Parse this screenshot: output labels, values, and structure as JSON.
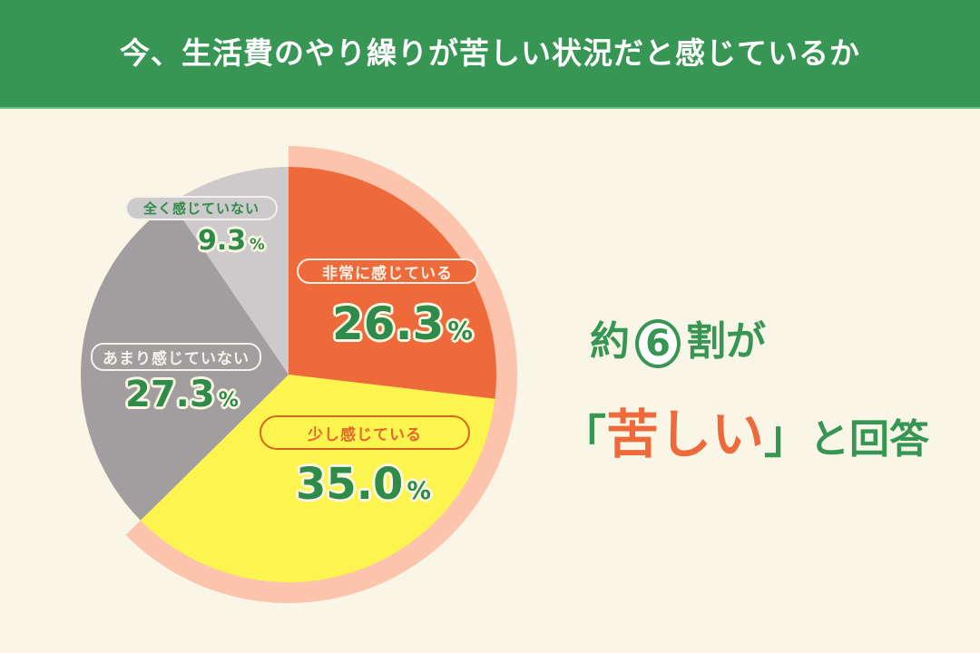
{
  "header": {
    "title": "今、生活費のやり繰りが苦しい状況だと感じているか"
  },
  "headline": {
    "line1_pre": "約",
    "line1_num": "6",
    "line1_post": "割が",
    "line2_open": "「",
    "line2_emph": "苦しい",
    "line2_close": "」",
    "line2_post": "と回答"
  },
  "slices": [
    {
      "label": "非常に感じている",
      "value": "26.3",
      "unit": "%",
      "color": "#ef6a3a"
    },
    {
      "label": "少し感じている",
      "value": "35.0",
      "unit": "%",
      "color": "#fdf54f"
    },
    {
      "label": "あまり感じていない",
      "value": "27.3",
      "unit": "%",
      "color": "#a29e9f"
    },
    {
      "label": "全く感じていない",
      "value": "9.3",
      "unit": "%",
      "color": "#cdcacb"
    }
  ],
  "colors": {
    "header_bg": "#389654",
    "background": "#f9f6e8",
    "accent_green": "#2e8b4a",
    "accent_red": "#ee6a3b",
    "highlight_ring": "#fcc4ad"
  },
  "chart_data": {
    "type": "pie",
    "title": "今、生活費のやり繰りが苦しい状況だと感じているか",
    "categories": [
      "非常に感じている",
      "少し感じている",
      "あまり感じていない",
      "全く感じていない"
    ],
    "values": [
      26.3,
      35.0,
      27.3,
      9.3
    ],
    "unit": "%",
    "start_angle": "12 o'clock, clockwise",
    "highlighted": [
      "非常に感じている",
      "少し感じている"
    ],
    "annotation": "約6割が「苦しい」と回答"
  }
}
